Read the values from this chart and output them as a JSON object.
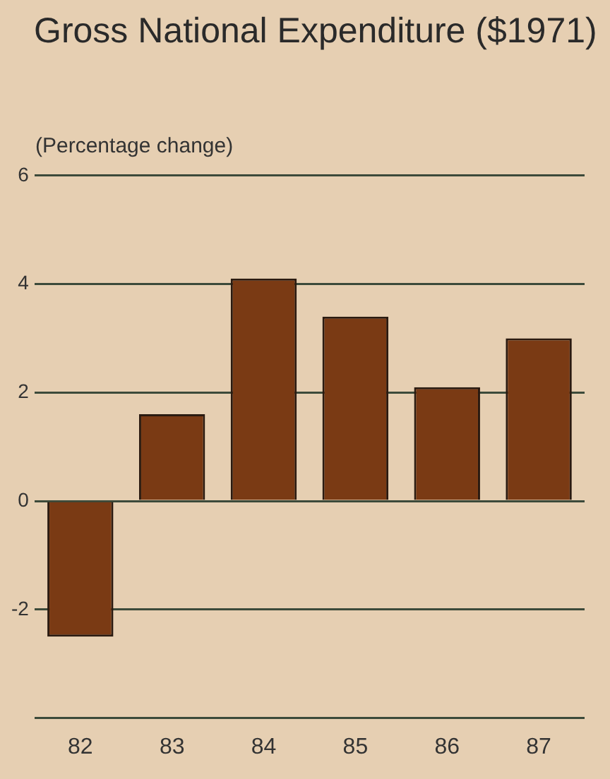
{
  "chart_data": {
    "type": "bar",
    "title": "Gross National Expenditure ($1971)",
    "ylabel": "(Percentage change)",
    "categories": [
      "82",
      "83",
      "84",
      "85",
      "86",
      "87"
    ],
    "values": [
      -2.5,
      1.6,
      4.1,
      3.4,
      2.1,
      3.0
    ],
    "color": "#7a3a14",
    "ylim": [
      -4,
      6
    ],
    "yticks": [
      {
        "value": -4,
        "label": null
      },
      -2,
      0,
      2,
      4,
      6
    ],
    "grid": "y"
  }
}
